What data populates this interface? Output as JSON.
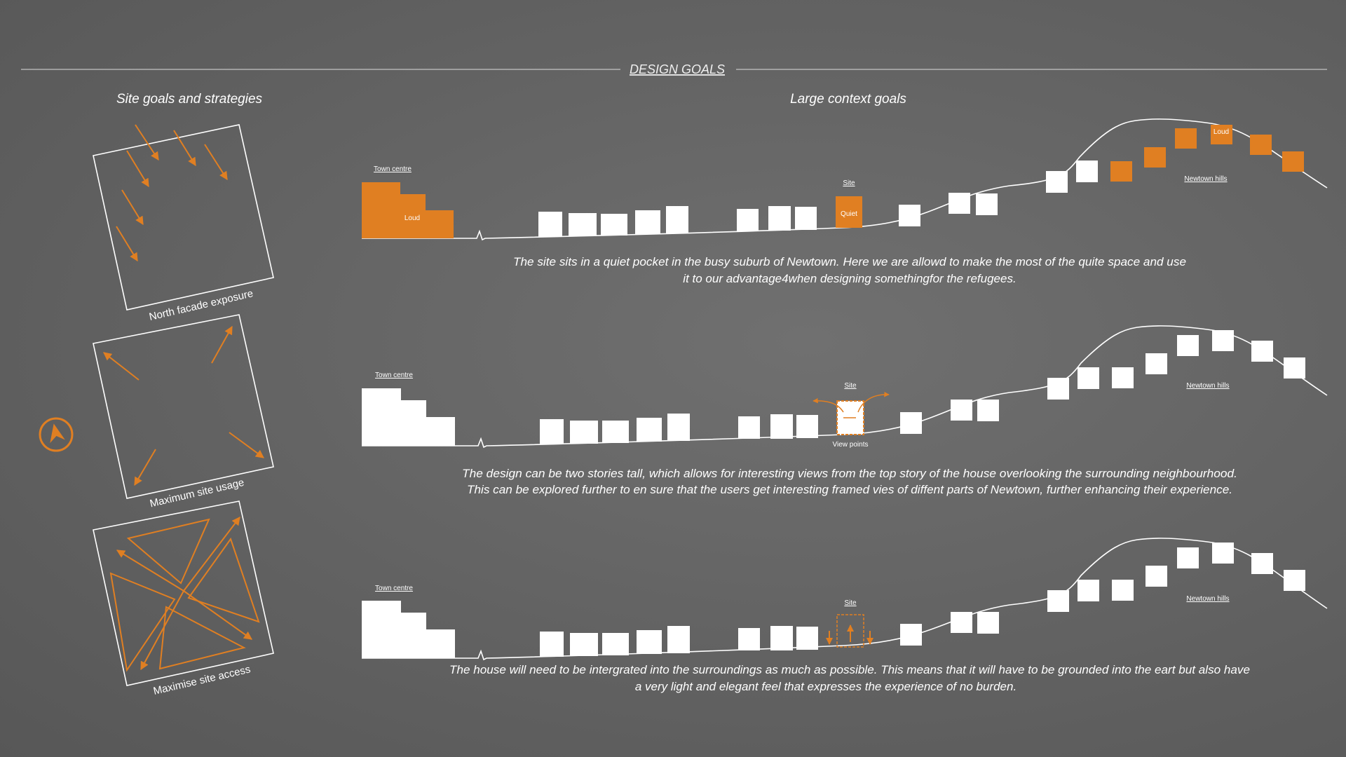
{
  "header": {
    "title": "DESIGN GOALS"
  },
  "left_panel": {
    "heading": "Site goals and strategies",
    "diagrams": [
      {
        "caption": "North facade exposure"
      },
      {
        "caption": "Maximum site usage"
      },
      {
        "caption": "Maximise site access"
      }
    ],
    "north_arrow_icon": "north-arrow-icon"
  },
  "right_panel": {
    "heading": "Large context goals",
    "sections": [
      {
        "labels": {
          "town": "Town centre",
          "site": "Site",
          "hills": "Newtown hills",
          "town_noise": "Loud",
          "site_noise": "Quiet",
          "hills_noise": "Loud"
        },
        "text_line1": "The site sits in a quiet pocket in the busy suburb of Newtown. Here we are allowd to make the most of the quite space and use",
        "text_line2": "it to our advantage4when designing somethingfor the refugees."
      },
      {
        "labels": {
          "town": "Town centre",
          "site": "Site",
          "hills": "Newtown hills",
          "view": "View points"
        },
        "text_line1": "The design can be two stories tall, which allows for interesting views from the top story of the house overlooking the surrounding neighbourhood.",
        "text_line2": "This can be explored further to en sure that the users get interesting framed vies of diffent parts of Newtown, further enhancing their experience."
      },
      {
        "labels": {
          "town": "Town centre",
          "site": "Site",
          "hills": "Newtown hills"
        },
        "text_line1": "The house will need to be intergrated into the surroundings as much as possible. This means that it will have to be grounded into the eart but also have",
        "text_line2": "a very light and elegant feel that expresses the experience of no burden."
      }
    ]
  },
  "colors": {
    "accent": "#e07f22",
    "line": "#ffffff"
  }
}
